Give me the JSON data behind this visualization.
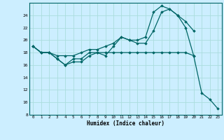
{
  "xlabel": "Humidex (Indice chaleur)",
  "background_color": "#cceeff",
  "grid_color": "#aadddd",
  "line_color": "#006666",
  "xlim": [
    -0.5,
    23.5
  ],
  "ylim": [
    8,
    26
  ],
  "yticks": [
    8,
    10,
    12,
    14,
    16,
    18,
    20,
    22,
    24
  ],
  "xticks": [
    0,
    1,
    2,
    3,
    4,
    5,
    6,
    7,
    8,
    9,
    10,
    11,
    12,
    13,
    14,
    15,
    16,
    17,
    18,
    19,
    20,
    21,
    22,
    23
  ],
  "line1_x": [
    0,
    1,
    2,
    3,
    4,
    5,
    6,
    7,
    8,
    9,
    10,
    11,
    12,
    13,
    14,
    15,
    16,
    17,
    18,
    19,
    20
  ],
  "line1_y": [
    19,
    18,
    18,
    17,
    16,
    17,
    17,
    18,
    18,
    18,
    18,
    18,
    18,
    18,
    18,
    18,
    18,
    18,
    18,
    18,
    17.5
  ],
  "line2_x": [
    0,
    1,
    2,
    3,
    4,
    5,
    6,
    7,
    8,
    9,
    10,
    11,
    12,
    13,
    14,
    15,
    16,
    17,
    18,
    19,
    20
  ],
  "line2_y": [
    19,
    18,
    18,
    17.5,
    17.5,
    17.5,
    18,
    18.5,
    18.5,
    19,
    19.5,
    20.5,
    20,
    19.5,
    19.5,
    21.5,
    24.5,
    25,
    24,
    23,
    21.5
  ],
  "line3_x": [
    0,
    1,
    2,
    3,
    4,
    5,
    6,
    7,
    8,
    9,
    10,
    11,
    12,
    13,
    14,
    15,
    16,
    17,
    18,
    19,
    20,
    21,
    22,
    23
  ],
  "line3_y": [
    19,
    18,
    18,
    17,
    16,
    16.5,
    16.5,
    17.5,
    18,
    17.5,
    19,
    20.5,
    20,
    20,
    20.5,
    24.5,
    25.5,
    25,
    24,
    22,
    17.5,
    11.5,
    10.5,
    9
  ]
}
